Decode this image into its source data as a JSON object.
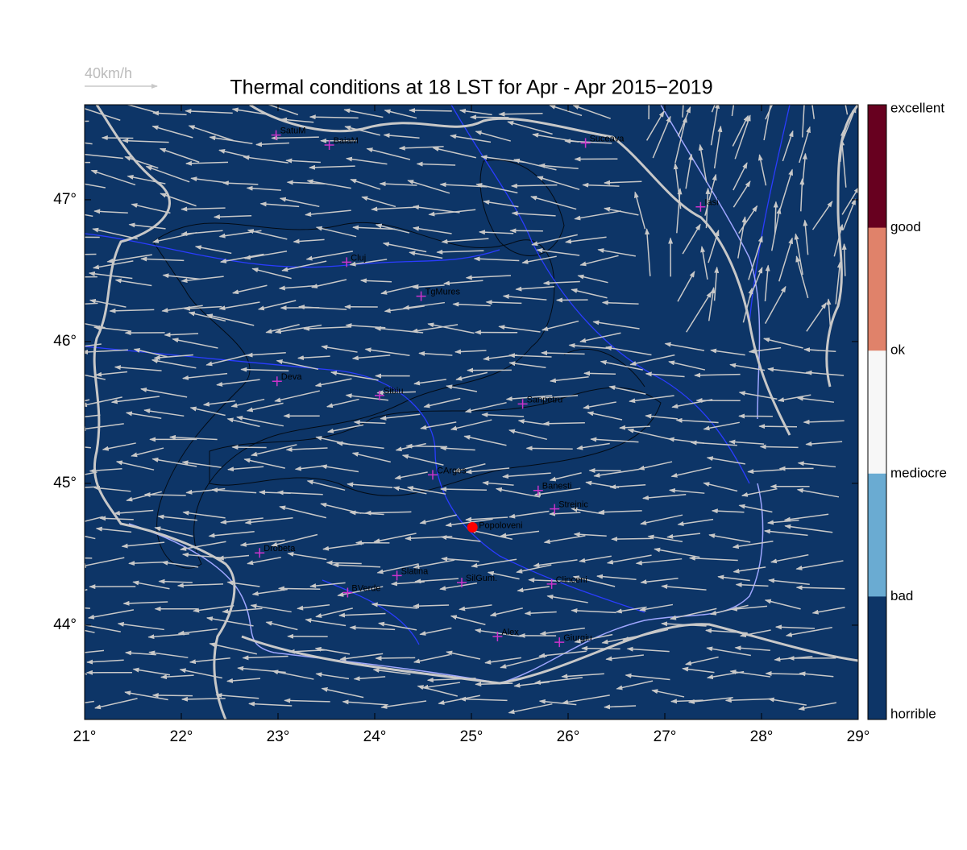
{
  "map": {
    "title": "Thermal conditions at 18 LST for Apr - Apr  2015−2019",
    "scale_label": "40km/h",
    "xlim": [
      21,
      29
    ],
    "ylim": [
      43.335,
      47.67
    ],
    "xticks": [
      {
        "value": 21,
        "label": "21°"
      },
      {
        "value": 22,
        "label": "22°"
      },
      {
        "value": 23,
        "label": "23°"
      },
      {
        "value": 24,
        "label": "24°"
      },
      {
        "value": 25,
        "label": "25°"
      },
      {
        "value": 26,
        "label": "26°"
      },
      {
        "value": 27,
        "label": "27°"
      },
      {
        "value": 28,
        "label": "28°"
      },
      {
        "value": 29,
        "label": "29°"
      }
    ],
    "yticks": [
      {
        "value": 44,
        "label": "44°"
      },
      {
        "value": 45,
        "label": "45°"
      },
      {
        "value": 46,
        "label": "46°"
      },
      {
        "value": 47,
        "label": "47°"
      }
    ],
    "cities": [
      {
        "name": "SatuM",
        "lon": 22.98,
        "lat": 47.456
      },
      {
        "name": "BaiaM",
        "lon": 23.53,
        "lat": 47.386
      },
      {
        "name": "Suceava",
        "lon": 26.18,
        "lat": 47.4
      },
      {
        "name": "Iasi",
        "lon": 27.37,
        "lat": 46.95
      },
      {
        "name": "Cluj",
        "lon": 23.71,
        "lat": 46.56
      },
      {
        "name": "TgMures",
        "lon": 24.48,
        "lat": 46.32
      },
      {
        "name": "Deva",
        "lon": 22.99,
        "lat": 45.72
      },
      {
        "name": "Sibiu",
        "lon": 24.05,
        "lat": 45.62
      },
      {
        "name": "Sanpetru",
        "lon": 25.53,
        "lat": 45.56
      },
      {
        "name": "CArges",
        "lon": 24.6,
        "lat": 45.06
      },
      {
        "name": "Banesti",
        "lon": 25.69,
        "lat": 44.95
      },
      {
        "name": "Strejnic",
        "lon": 25.86,
        "lat": 44.82
      },
      {
        "name": "Drobeta",
        "lon": 22.81,
        "lat": 44.51
      },
      {
        "name": "Slatina",
        "lon": 24.23,
        "lat": 44.35
      },
      {
        "name": "SilGum.",
        "lon": 24.9,
        "lat": 44.3
      },
      {
        "name": "Clinceni",
        "lon": 25.83,
        "lat": 44.29
      },
      {
        "name": "BVerde",
        "lon": 23.72,
        "lat": 44.23
      },
      {
        "name": "Alex",
        "lon": 25.27,
        "lat": 43.92
      },
      {
        "name": "Giurgiu",
        "lon": 25.91,
        "lat": 43.88
      }
    ],
    "site": {
      "name": "Popoloveni",
      "lon": 25.01,
      "lat": 44.69,
      "color": "#ff0000"
    },
    "colorbar": {
      "labels": [
        "excellent",
        "good",
        "ok",
        "mediocre",
        "bad",
        "horrible"
      ],
      "colors": [
        "#67001f",
        "#e0826a",
        "#f7f7f7",
        "#6aabd2",
        "#0d3567"
      ]
    },
    "background_color": "#0d3567",
    "city_color": "#cc33cc"
  }
}
